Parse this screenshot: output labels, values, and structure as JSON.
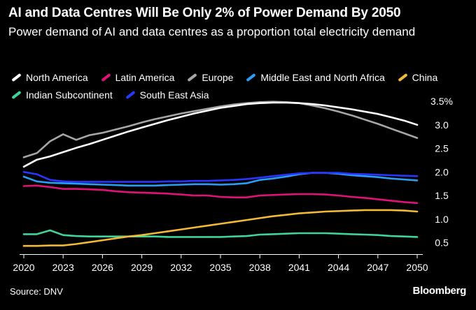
{
  "chart_data": {
    "type": "line",
    "title": "AI and Data Centres Will Be Only 2% of Power Demand By 2050",
    "subtitle": "Power demand of AI and data centres as a proportion total electricity demand",
    "xlabel": "",
    "ylabel": "",
    "xlim": [
      2020,
      2050
    ],
    "ylim": [
      0.3,
      3.5
    ],
    "x_ticks": [
      "2020",
      "2023",
      "2026",
      "2029",
      "2032",
      "2035",
      "2038",
      "2041",
      "2044",
      "2047",
      "2050"
    ],
    "y_ticks": [
      "0.5",
      "1.0",
      "1.5",
      "2.0",
      "2.5",
      "3.0",
      "3.5%"
    ],
    "y_tick_values": [
      0.5,
      1.0,
      1.5,
      2.0,
      2.5,
      3.0,
      3.5
    ],
    "x": [
      2020,
      2021,
      2022,
      2023,
      2024,
      2025,
      2026,
      2027,
      2028,
      2029,
      2030,
      2031,
      2032,
      2033,
      2034,
      2035,
      2036,
      2037,
      2038,
      2039,
      2040,
      2041,
      2042,
      2043,
      2044,
      2045,
      2046,
      2047,
      2048,
      2049,
      2050
    ],
    "series": [
      {
        "name": "Indian Subcontinent",
        "color": "#3fd49a",
        "values": [
          0.68,
          0.68,
          0.76,
          0.66,
          0.64,
          0.63,
          0.63,
          0.63,
          0.63,
          0.63,
          0.63,
          0.62,
          0.62,
          0.62,
          0.62,
          0.62,
          0.63,
          0.64,
          0.67,
          0.68,
          0.69,
          0.7,
          0.7,
          0.7,
          0.69,
          0.68,
          0.67,
          0.66,
          0.64,
          0.63,
          0.62
        ]
      },
      {
        "name": "China",
        "color": "#f2b838",
        "values": [
          0.43,
          0.43,
          0.44,
          0.44,
          0.47,
          0.51,
          0.55,
          0.59,
          0.63,
          0.66,
          0.7,
          0.74,
          0.78,
          0.82,
          0.86,
          0.9,
          0.94,
          0.98,
          1.02,
          1.06,
          1.09,
          1.12,
          1.14,
          1.16,
          1.17,
          1.18,
          1.19,
          1.19,
          1.19,
          1.18,
          1.16
        ]
      },
      {
        "name": "Latin America",
        "color": "#e0127a",
        "values": [
          1.7,
          1.71,
          1.68,
          1.64,
          1.64,
          1.63,
          1.62,
          1.59,
          1.57,
          1.56,
          1.55,
          1.54,
          1.52,
          1.5,
          1.5,
          1.47,
          1.46,
          1.46,
          1.5,
          1.51,
          1.52,
          1.53,
          1.53,
          1.52,
          1.5,
          1.47,
          1.45,
          1.42,
          1.39,
          1.36,
          1.34
        ]
      },
      {
        "name": "Middle East and North Africa",
        "color": "#2a9df4",
        "values": [
          1.9,
          1.8,
          1.77,
          1.76,
          1.75,
          1.74,
          1.73,
          1.72,
          1.71,
          1.71,
          1.71,
          1.72,
          1.73,
          1.74,
          1.74,
          1.73,
          1.74,
          1.76,
          1.83,
          1.86,
          1.9,
          1.95,
          1.98,
          1.98,
          1.96,
          1.93,
          1.91,
          1.89,
          1.86,
          1.84,
          1.82
        ]
      },
      {
        "name": "South East Asia",
        "color": "#2a35ff",
        "values": [
          2.0,
          1.95,
          1.83,
          1.8,
          1.79,
          1.79,
          1.79,
          1.79,
          1.79,
          1.79,
          1.79,
          1.8,
          1.8,
          1.81,
          1.81,
          1.82,
          1.83,
          1.85,
          1.88,
          1.91,
          1.94,
          1.97,
          1.98,
          1.98,
          1.98,
          1.96,
          1.95,
          1.94,
          1.93,
          1.92,
          1.91
        ]
      },
      {
        "name": "Europe",
        "color": "#a6a6a6",
        "values": [
          2.31,
          2.4,
          2.65,
          2.8,
          2.68,
          2.78,
          2.83,
          2.9,
          2.97,
          3.05,
          3.12,
          3.18,
          3.24,
          3.29,
          3.34,
          3.39,
          3.43,
          3.46,
          3.48,
          3.49,
          3.48,
          3.46,
          3.41,
          3.35,
          3.28,
          3.2,
          3.11,
          3.02,
          2.92,
          2.82,
          2.72
        ]
      },
      {
        "name": "North America",
        "color": "#ffffff",
        "values": [
          2.11,
          2.26,
          2.33,
          2.42,
          2.51,
          2.59,
          2.68,
          2.77,
          2.86,
          2.94,
          3.02,
          3.1,
          3.17,
          3.24,
          3.3,
          3.36,
          3.4,
          3.44,
          3.46,
          3.47,
          3.47,
          3.46,
          3.44,
          3.41,
          3.37,
          3.33,
          3.28,
          3.23,
          3.16,
          3.09,
          3.0
        ]
      }
    ],
    "legend": [
      {
        "name": "North America",
        "color": "#ffffff"
      },
      {
        "name": "Latin America",
        "color": "#e0127a"
      },
      {
        "name": "Europe",
        "color": "#a6a6a6"
      },
      {
        "name": "Middle East and North Africa",
        "color": "#2a9df4"
      },
      {
        "name": "China",
        "color": "#f2b838"
      },
      {
        "name": "Indian Subcontinent",
        "color": "#3fd49a"
      },
      {
        "name": "South East Asia",
        "color": "#2a35ff"
      }
    ],
    "source": "Source: DNV",
    "brand": "Bloomberg"
  }
}
